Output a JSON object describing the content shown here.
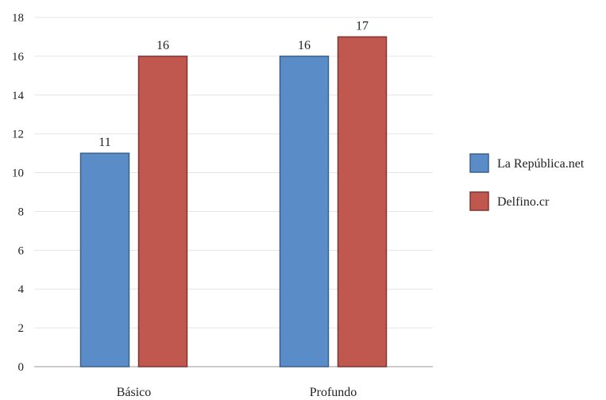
{
  "chart_data": {
    "type": "bar",
    "title": "",
    "xlabel": "",
    "ylabel": "",
    "categories": [
      "Básico",
      "Profundo"
    ],
    "series": [
      {
        "name": "La República.net",
        "values": [
          11,
          16
        ],
        "color": "#5a8dc8",
        "stroke": "#3a5f8c"
      },
      {
        "name": "Delfino.cr",
        "values": [
          16,
          17
        ],
        "color": "#c0584f",
        "stroke": "#7f3530"
      }
    ],
    "ylim": [
      0,
      18
    ],
    "yticks": [
      0,
      2,
      4,
      6,
      8,
      10,
      12,
      14,
      16,
      18
    ],
    "grid": true,
    "legend": "right",
    "data_labels": true
  }
}
